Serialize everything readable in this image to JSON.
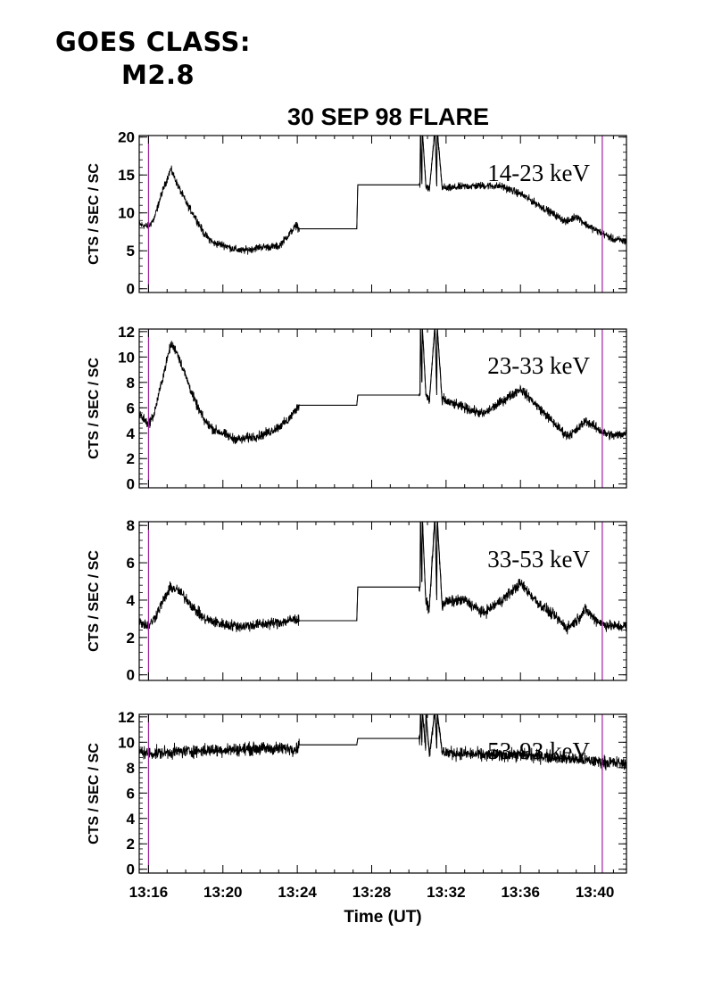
{
  "header": {
    "goes_line1": "GOES CLASS:",
    "goes_line2": "M2.8"
  },
  "chart_data": {
    "type": "line",
    "title": "30 SEP 98 FLARE",
    "xlabel": "Time (UT)",
    "x_unit": "minutes after 13:16 UT",
    "xlim": [
      -0.5,
      25.7
    ],
    "x_ticks": [
      {
        "value": 0,
        "label": "13:16"
      },
      {
        "value": 4,
        "label": "13:20"
      },
      {
        "value": 8,
        "label": "13:24"
      },
      {
        "value": 12,
        "label": "13:28"
      },
      {
        "value": 16,
        "label": "13:32"
      },
      {
        "value": 20,
        "label": "13:36"
      },
      {
        "value": 24,
        "label": "13:40"
      }
    ],
    "vertical_markers": {
      "x": [
        0.0,
        24.4
      ],
      "color": "#a020a0"
    },
    "line_color": "#000000",
    "grid": false,
    "panels": [
      {
        "band_label": "14-23 keV",
        "ylabel": "CTS / SEC / SC",
        "ylim": [
          -0.5,
          20.2
        ],
        "y_ticks": [
          0,
          5,
          10,
          15,
          20
        ],
        "noise": 0.5,
        "x": [
          -0.5,
          0,
          0.3,
          0.7,
          1.2,
          1.6,
          2.1,
          2.5,
          3.0,
          3.5,
          4.0,
          4.5,
          5.0,
          5.5,
          6.0,
          6.5,
          7.0,
          7.5,
          8.0,
          8.05,
          11.2,
          11.25,
          14.6,
          14.62,
          14.7,
          14.72,
          14.9,
          14.92,
          15.1,
          15.4,
          15.5,
          15.52,
          15.8,
          15.82,
          16.0,
          17.0,
          18.0,
          19.0,
          20.0,
          21.0,
          22.0,
          22.5,
          23.0,
          23.5,
          24.0,
          24.5,
          25.0,
          25.7
        ],
        "y": [
          8.5,
          8.2,
          9.2,
          12.5,
          15.8,
          13.5,
          11.0,
          9.5,
          7.2,
          6.0,
          5.8,
          5.3,
          5.0,
          5.2,
          5.5,
          5.5,
          5.6,
          7.0,
          8.5,
          7.9,
          7.9,
          13.7,
          13.7,
          21,
          13.8,
          21,
          14.2,
          13.5,
          13.0,
          21,
          13.5,
          21,
          13.0,
          13.5,
          13.2,
          13.5,
          13.6,
          13.5,
          12.5,
          11.0,
          9.5,
          8.8,
          9.6,
          8.5,
          7.8,
          7.2,
          6.5,
          6.3
        ]
      },
      {
        "band_label": "23-33 keV",
        "ylabel": "CTS / SEC / SC",
        "ylim": [
          -0.3,
          12.2
        ],
        "y_ticks": [
          0,
          2,
          4,
          6,
          8,
          10,
          12
        ],
        "noise": 0.38,
        "x": [
          -0.5,
          0,
          0.3,
          0.7,
          1.2,
          1.5,
          2.0,
          2.5,
          3.0,
          3.5,
          4.0,
          4.5,
          5.0,
          5.5,
          6.0,
          6.5,
          7.0,
          7.5,
          8.0,
          8.05,
          11.2,
          11.25,
          14.6,
          14.62,
          14.7,
          14.72,
          14.9,
          14.92,
          15.1,
          15.4,
          15.5,
          15.52,
          15.8,
          15.82,
          16.0,
          17.0,
          18.0,
          19.0,
          20.0,
          21.0,
          22.0,
          22.5,
          23.0,
          23.5,
          24.0,
          24.5,
          25.0,
          25.7
        ],
        "y": [
          5.5,
          4.7,
          5.5,
          8.0,
          11.0,
          10.5,
          8.5,
          6.5,
          5.0,
          4.3,
          4.0,
          3.6,
          3.5,
          3.7,
          3.8,
          4.1,
          4.5,
          5.0,
          6.0,
          6.2,
          6.2,
          7.0,
          7.0,
          12.5,
          8.0,
          12.5,
          7.5,
          7.0,
          6.5,
          12.5,
          7.0,
          12.5,
          6.2,
          6.8,
          6.5,
          6.0,
          5.5,
          6.5,
          7.5,
          6.0,
          4.5,
          3.8,
          4.2,
          5.0,
          4.5,
          4.0,
          3.8,
          4.0
        ]
      },
      {
        "band_label": "33-53 keV",
        "ylabel": "CTS / SEC / SC",
        "ylim": [
          -0.3,
          8.2
        ],
        "y_ticks": [
          0,
          2,
          4,
          6,
          8
        ],
        "noise": 0.3,
        "x": [
          -0.5,
          0,
          0.3,
          0.7,
          1.2,
          1.6,
          2.1,
          2.5,
          3.0,
          4.0,
          5.0,
          6.0,
          7.0,
          8.0,
          8.05,
          11.2,
          11.25,
          14.6,
          14.62,
          14.7,
          14.72,
          14.9,
          14.92,
          15.1,
          15.4,
          15.5,
          15.52,
          15.8,
          15.82,
          16.0,
          17.0,
          18.0,
          19.0,
          20.0,
          21.0,
          22.0,
          22.5,
          23.0,
          23.5,
          24.0,
          24.5,
          25.0,
          25.7
        ],
        "y": [
          2.9,
          2.6,
          3.0,
          3.8,
          4.7,
          4.5,
          4.0,
          3.5,
          3.0,
          2.7,
          2.6,
          2.7,
          2.8,
          3.0,
          2.9,
          2.9,
          4.7,
          4.7,
          8.5,
          5.0,
          8.5,
          4.2,
          3.8,
          3.6,
          8.5,
          4.0,
          8.5,
          3.5,
          3.8,
          3.9,
          4.0,
          3.3,
          4.0,
          4.9,
          3.8,
          3.0,
          2.5,
          2.9,
          3.5,
          3.0,
          2.7,
          2.6,
          2.6
        ]
      },
      {
        "band_label": "53-93 keV",
        "ylabel": "CTS / SEC / SC",
        "ylim": [
          -0.3,
          12.2
        ],
        "y_ticks": [
          0,
          2,
          4,
          6,
          8,
          10,
          12
        ],
        "noise": 0.5,
        "x": [
          -0.5,
          0,
          2.0,
          4.0,
          6.0,
          8.0,
          8.05,
          11.2,
          11.25,
          14.6,
          14.62,
          14.7,
          14.72,
          14.9,
          14.92,
          15.1,
          15.4,
          15.5,
          15.52,
          15.8,
          15.82,
          16.0,
          18.0,
          20.0,
          22.0,
          24.0,
          25.7
        ],
        "y": [
          9.3,
          9.1,
          9.3,
          9.4,
          9.5,
          9.5,
          9.8,
          9.8,
          10.3,
          10.3,
          12.5,
          10.0,
          12.5,
          9.5,
          12.5,
          9.0,
          12.5,
          9.5,
          12.5,
          9.0,
          9.3,
          9.2,
          9.0,
          9.0,
          8.8,
          8.5,
          8.3
        ]
      }
    ]
  }
}
